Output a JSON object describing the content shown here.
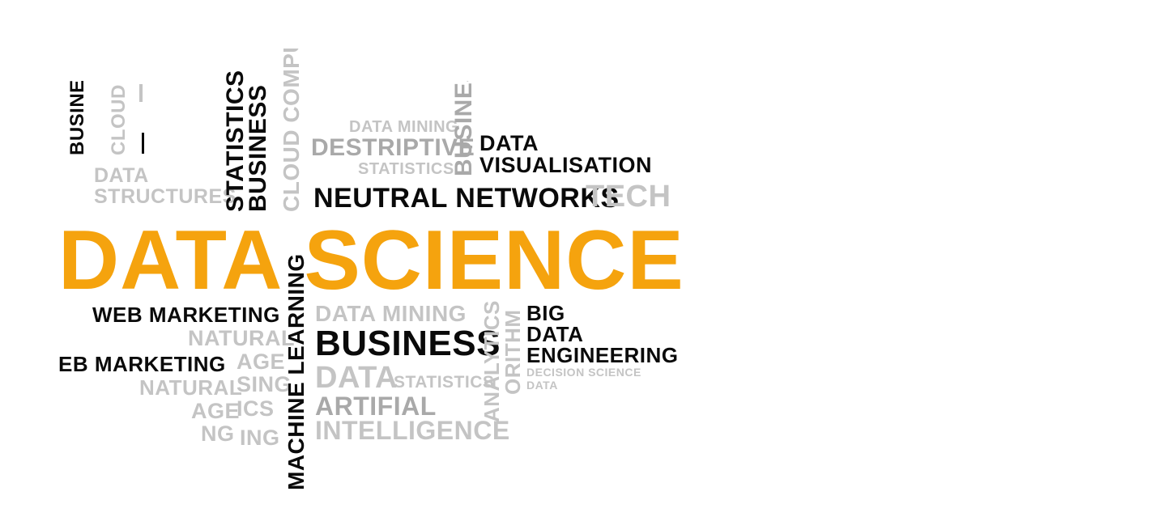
{
  "words": {
    "data_science": "DATA SCIENCE",
    "data_visualisation_1": "DATA",
    "data_visualisation_2": "VISUALISATION",
    "neutral_networks": "NEUTRAL NETWORKS",
    "tech": "TECH",
    "data_mining_top": "DATA MINING",
    "destriptive": "DESTRIPTIVE",
    "statistics_top": "STATISTICS",
    "business_vertical_top": "BUSINESS",
    "cloud_computers": "CLOUD COMPUTERS",
    "statistics_vertical": "STATISTICS",
    "business_vertical_mid": "BUSINESS",
    "data_structures_1": "DATA",
    "data_structures_2": "STRUCTURES",
    "cloud_vertical_partial": "CLOUD CO",
    "busine_vertical_partial": "BUSINE",
    "web_marketing_1": "WEB MARKETING",
    "natural_1": "NATURAL",
    "language_1": "AGE",
    "web_marketing_2": "EB MARKETING",
    "natural_2": "NATURAL",
    "processing_1": "SING",
    "language_2": "AGE",
    "ics": "ICS",
    "ing": "ING",
    "ng": "NG",
    "machine_learning": "MACHINE LEARNING",
    "data_mining_bottom": "DATA MINING",
    "business_big": "BUSINESS",
    "data_bottom": "DATA",
    "statistics_bottom": "STATISTICS",
    "artifial": "ARTIFIAL",
    "intelligence": "INTELLIGENCE",
    "analytics_vertical": "ANALYTICS",
    "algorithm_vertical": "ORITHM",
    "big": "BIG",
    "data_big": "DATA",
    "engineering": "ENGINEERING",
    "decision_science": "DECISION SCIENCE",
    "data_small": "DATA"
  },
  "colors": {
    "accent_orange": "#f5a30e",
    "dark": "#0a0a0a",
    "grey": "#a9a9a9",
    "light_grey": "#c4c4c4"
  }
}
